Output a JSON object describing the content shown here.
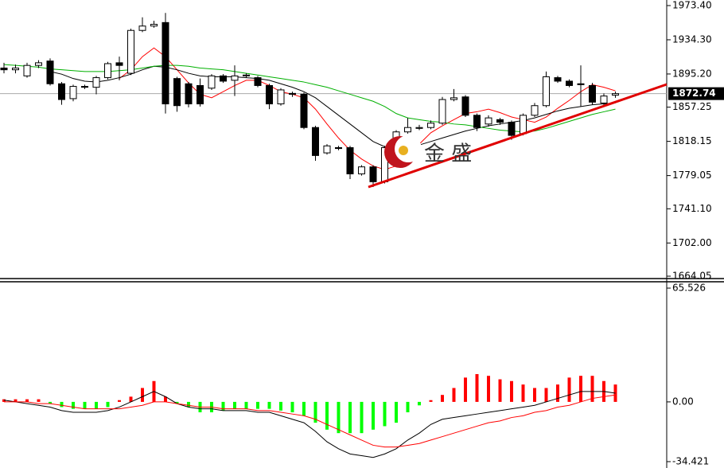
{
  "chart_data": [
    {
      "type": "candlestick",
      "ylim": [
        1664.05,
        1973.4
      ],
      "yticks": [
        {
          "value": 1973.4,
          "label": "1973.40"
        },
        {
          "value": 1934.3,
          "label": "1934.30"
        },
        {
          "value": 1895.2,
          "label": "1895.20"
        },
        {
          "value": 1857.25,
          "label": "1857.25"
        },
        {
          "value": 1818.15,
          "label": "1818.15"
        },
        {
          "value": 1779.05,
          "label": "1779.05"
        },
        {
          "value": 1741.1,
          "label": "1741.10"
        },
        {
          "value": 1702,
          "label": "1702.00"
        },
        {
          "value": 1664.05,
          "label": "1664.05"
        }
      ],
      "current_price": 1872.74,
      "up_color": "#ffffff",
      "down_color": "#000000",
      "candles": {
        "open": [
          1902,
          1900,
          1893,
          1905,
          1910,
          1884,
          1867,
          1881,
          1880,
          1891,
          1908,
          1896,
          1945,
          1950,
          1954,
          1890,
          1884,
          1882,
          1879,
          1893,
          1888,
          1893,
          1891,
          1882,
          1861,
          1873,
          1872,
          1834,
          1805,
          1811,
          1811,
          1781,
          1789,
          1772,
          1814,
          1829,
          1833,
          1834,
          1839,
          1866,
          1869,
          1848,
          1838,
          1843,
          1840,
          1827,
          1848,
          1859,
          1891,
          1887,
          1884,
          1882,
          1862,
          1871
        ],
        "high": [
          1908,
          1906,
          1908,
          1911,
          1913,
          1886,
          1883,
          1883,
          1893,
          1909,
          1915,
          1947,
          1960,
          1956,
          1965,
          1892,
          1886,
          1890,
          1895,
          1895,
          1905,
          1896,
          1893,
          1884,
          1879,
          1875,
          1874,
          1836,
          1815,
          1813,
          1813,
          1791,
          1791,
          1813,
          1831,
          1845,
          1837,
          1842,
          1869,
          1878,
          1871,
          1850,
          1848,
          1845,
          1842,
          1850,
          1862,
          1898,
          1893,
          1889,
          1905,
          1885,
          1873,
          1875
        ],
        "low": [
          1896,
          1896,
          1891,
          1902,
          1882,
          1860,
          1864,
          1878,
          1872,
          1889,
          1888,
          1894,
          1943,
          1948,
          1850,
          1852,
          1857,
          1858,
          1877,
          1885,
          1870,
          1891,
          1880,
          1855,
          1859,
          1869,
          1832,
          1796,
          1803,
          1808,
          1775,
          1779,
          1766,
          1770,
          1812,
          1827,
          1831,
          1832,
          1837,
          1864,
          1846,
          1830,
          1835,
          1837,
          1820,
          1825,
          1846,
          1857,
          1885,
          1880,
          1858,
          1860,
          1858,
          1868
        ],
        "close": [
          1900,
          1902,
          1905,
          1908,
          1884,
          1866,
          1881,
          1880,
          1891,
          1907,
          1905,
          1945,
          1950,
          1952,
          1861,
          1859,
          1861,
          1861,
          1893,
          1887,
          1893,
          1894,
          1882,
          1861,
          1877,
          1872,
          1834,
          1802,
          1813,
          1810,
          1781,
          1789,
          1772,
          1811,
          1829,
          1834,
          1834,
          1839,
          1866,
          1868,
          1848,
          1834,
          1845,
          1840,
          1825,
          1848,
          1859,
          1892,
          1887,
          1882,
          1883,
          1863,
          1870,
          1872.74
        ]
      },
      "series": [
        {
          "color": "#ff0000",
          "values": [
            null,
            null,
            null,
            null,
            null,
            null,
            null,
            null,
            null,
            null,
            1890,
            1900,
            1915,
            1925,
            1915,
            1900,
            1885,
            1872,
            1868,
            1875,
            1882,
            1888,
            1888,
            1882,
            1875,
            1872,
            1868,
            1855,
            1838,
            1822,
            1808,
            1798,
            1790,
            1786,
            1790,
            1800,
            1815,
            1828,
            1836,
            1843,
            1850,
            1852,
            1855,
            1851,
            1846,
            1843,
            1840,
            1846,
            1856,
            1865,
            1875,
            1883,
            1880,
            1876
          ]
        },
        {
          "color": "#000000",
          "values": [
            null,
            null,
            null,
            null,
            1898,
            1895,
            1890,
            1887,
            1886,
            1888,
            1891,
            1895,
            1900,
            1904,
            1903,
            1900,
            1896,
            1893,
            1892,
            1892,
            1892,
            1891,
            1890,
            1888,
            1884,
            1880,
            1875,
            1868,
            1858,
            1848,
            1838,
            1828,
            1818,
            1812,
            1808,
            1810,
            1814,
            1818,
            1822,
            1826,
            1830,
            1833,
            1836,
            1838,
            1840,
            1842,
            1845,
            1849,
            1853,
            1856,
            1858,
            1860,
            1861,
            1862
          ]
        },
        {
          "color": "#00b000",
          "values": [
            1906,
            1905,
            1904,
            1903,
            1901,
            1900,
            1899,
            1898,
            1898,
            1898,
            1899,
            1900,
            1902,
            1904,
            1905,
            1905,
            1904,
            1902,
            1901,
            1900,
            1898,
            1896,
            1894,
            1892,
            1890,
            1888,
            1886,
            1883,
            1880,
            1876,
            1872,
            1868,
            1864,
            1858,
            1850,
            1845,
            1843,
            1841,
            1840,
            1838,
            1837,
            1835,
            1833,
            1831,
            1830,
            1829,
            1830,
            1833,
            1837,
            1841,
            1845,
            1849,
            1852,
            1855
          ]
        }
      ],
      "watermark": "金 盛"
    },
    {
      "type": "macd",
      "ylim": [
        -34.421,
        65.526
      ],
      "yticks": [
        65.526,
        {
          "value": 0,
          "label": "0.00"
        },
        -34.421
      ],
      "positive_color": "#ff0000",
      "negative_color": "#00ff00",
      "histogram": [
        1.5,
        1.5,
        1.5,
        1.5,
        -1,
        -3,
        -4,
        -4,
        -4,
        -3,
        1,
        3,
        8,
        12,
        3,
        -1,
        -3,
        -6,
        -6,
        -5,
        -4,
        -4,
        -4,
        -4,
        -5,
        -6,
        -8,
        -12,
        -16,
        -18,
        -18,
        -18,
        -16,
        -14,
        -12,
        -6,
        -2,
        1,
        4,
        8,
        14,
        16,
        15,
        13,
        12,
        10,
        8,
        8,
        10,
        14,
        15,
        15,
        12,
        10
      ],
      "series": [
        {
          "color": "#000000",
          "values": [
            1,
            0,
            -1,
            -2,
            -3,
            -5,
            -6,
            -6,
            -6,
            -5,
            -3,
            0,
            3,
            6,
            3,
            -1,
            -3,
            -4,
            -4,
            -5,
            -5,
            -5,
            -6,
            -6,
            -8,
            -10,
            -12,
            -17,
            -23,
            -27,
            -30,
            -31,
            -32,
            -30,
            -27,
            -22,
            -18,
            -13,
            -10,
            -9,
            -8,
            -7,
            -6,
            -5,
            -4,
            -3,
            -2,
            0,
            2,
            4,
            6,
            6,
            6,
            5
          ]
        },
        {
          "color": "#ff0000",
          "values": [
            0,
            0,
            0,
            -1,
            -1,
            -2,
            -3,
            -4,
            -4,
            -4,
            -4,
            -3,
            -2,
            0,
            0,
            -1,
            -2,
            -3,
            -3,
            -4,
            -4,
            -4,
            -5,
            -5,
            -6,
            -7,
            -8,
            -10,
            -13,
            -16,
            -19,
            -22,
            -25,
            -26,
            -26,
            -25,
            -24,
            -22,
            -20,
            -18,
            -16,
            -14,
            -12,
            -11,
            -9,
            -8,
            -6,
            -5,
            -3,
            -2,
            0,
            2,
            3,
            4
          ]
        }
      ]
    }
  ]
}
